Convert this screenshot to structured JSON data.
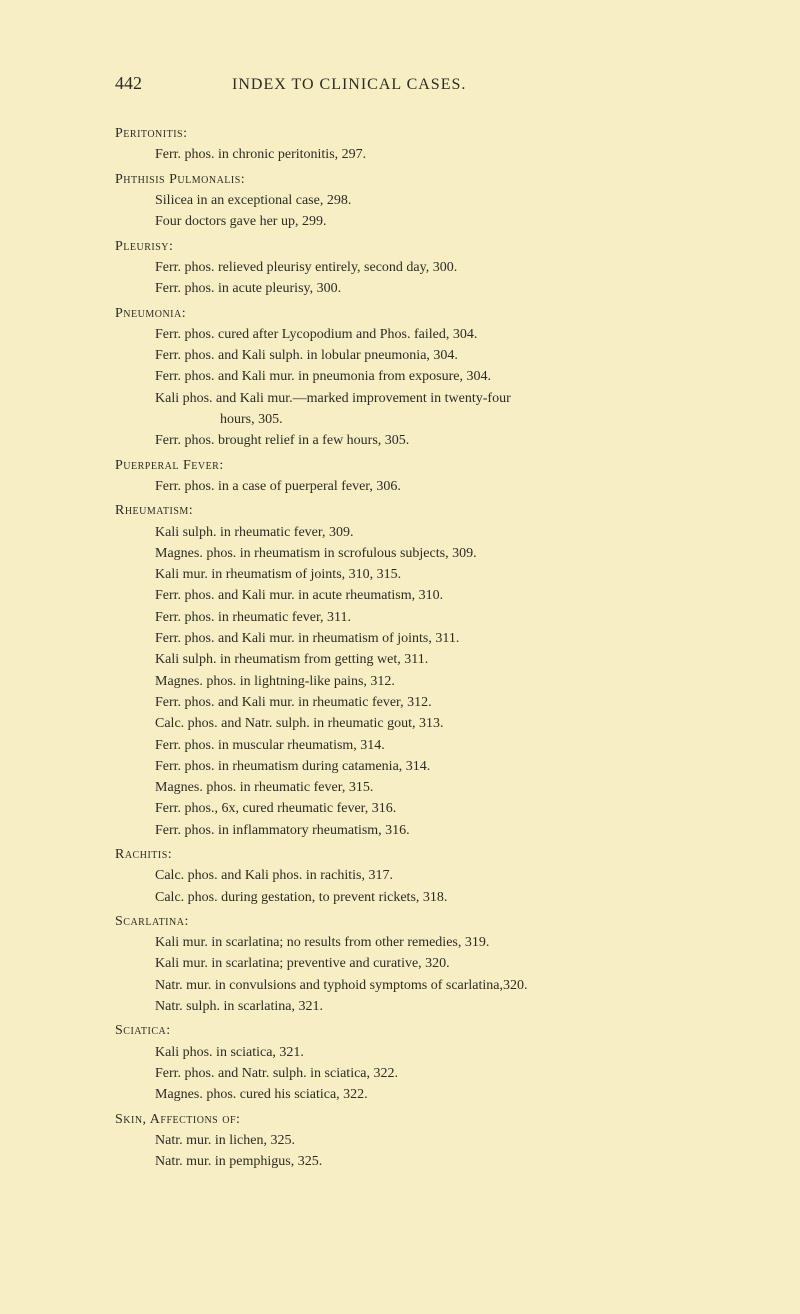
{
  "page_number": "442",
  "page_heading": "INDEX TO CLINICAL CASES.",
  "sections": [
    {
      "title": "Peritonitis:",
      "entries": [
        {
          "text": "Ferr. phos. in chronic peritonitis, 297."
        }
      ]
    },
    {
      "title": "Phthisis Pulmonalis:",
      "entries": [
        {
          "text": "Silicea in an exceptional case, 298."
        },
        {
          "text": "Four doctors gave her up, 299."
        }
      ]
    },
    {
      "title": "Pleurisy:",
      "entries": [
        {
          "text": "Ferr. phos. relieved pleurisy entirely, second day, 300."
        },
        {
          "text": "Ferr. phos. in acute pleurisy, 300."
        }
      ]
    },
    {
      "title": "Pneumonia:",
      "entries": [
        {
          "text": "Ferr. phos. cured after Lycopodium and Phos. failed, 304."
        },
        {
          "text": "Ferr. phos. and Kali sulph. in lobular pneumonia, 304."
        },
        {
          "text": "Ferr. phos. and Kali mur. in pneumonia from exposure, 304."
        },
        {
          "text": "Kali phos. and Kali mur.—marked improvement in twenty-four",
          "cont": "hours, 305."
        },
        {
          "text": "Ferr. phos. brought relief in a few hours, 305."
        }
      ]
    },
    {
      "title": "Puerperal Fever:",
      "entries": [
        {
          "text": "Ferr. phos. in a case of puerperal fever, 306."
        }
      ]
    },
    {
      "title": "Rheumatism:",
      "entries": [
        {
          "text": "Kali sulph. in rheumatic fever, 309."
        },
        {
          "text": "Magnes. phos. in rheumatism in scrofulous subjects, 309."
        },
        {
          "text": "Kali mur. in rheumatism of joints, 310, 315."
        },
        {
          "text": "Ferr. phos. and Kali mur. in acute rheumatism, 310."
        },
        {
          "text": "Ferr. phos. in rheumatic fever, 311."
        },
        {
          "text": "Ferr. phos. and Kali mur. in rheumatism of joints, 311."
        },
        {
          "text": "Kali sulph. in rheumatism from getting wet, 311."
        },
        {
          "text": "Magnes. phos. in lightning-like pains, 312."
        },
        {
          "text": "Ferr. phos. and Kali mur. in rheumatic fever, 312."
        },
        {
          "text": "Calc. phos. and Natr. sulph. in rheumatic gout, 313."
        },
        {
          "text": "Ferr. phos. in muscular rheumatism, 314."
        },
        {
          "text": "Ferr. phos. in rheumatism during catamenia, 314."
        },
        {
          "text": "Magnes. phos. in rheumatic fever, 315."
        },
        {
          "text": "Ferr. phos., 6x, cured rheumatic fever, 316."
        },
        {
          "text": "Ferr. phos. in inflammatory rheumatism, 316."
        }
      ]
    },
    {
      "title": "Rachitis:",
      "entries": [
        {
          "text": "Calc. phos. and Kali phos. in rachitis, 317."
        },
        {
          "text": "Calc. phos. during gestation, to prevent rickets, 318."
        }
      ]
    },
    {
      "title": "Scarlatina:",
      "entries": [
        {
          "text": "Kali mur. in scarlatina; no results from other remedies, 319."
        },
        {
          "text": "Kali mur. in scarlatina; preventive and curative, 320."
        },
        {
          "text": "Natr. mur. in convulsions and typhoid symptoms of scarlatina,320."
        },
        {
          "text": "Natr. sulph. in scarlatina, 321."
        }
      ]
    },
    {
      "title": "Sciatica:",
      "entries": [
        {
          "text": "Kali phos. in sciatica, 321."
        },
        {
          "text": "Ferr. phos. and Natr. sulph. in sciatica, 322."
        },
        {
          "text": "Magnes. phos. cured his sciatica, 322."
        }
      ]
    },
    {
      "title": "Skin, Affections of:",
      "entries": [
        {
          "text": "Natr. mur. in lichen, 325."
        },
        {
          "text": "Natr. mur. in pemphigus, 325."
        }
      ]
    }
  ]
}
